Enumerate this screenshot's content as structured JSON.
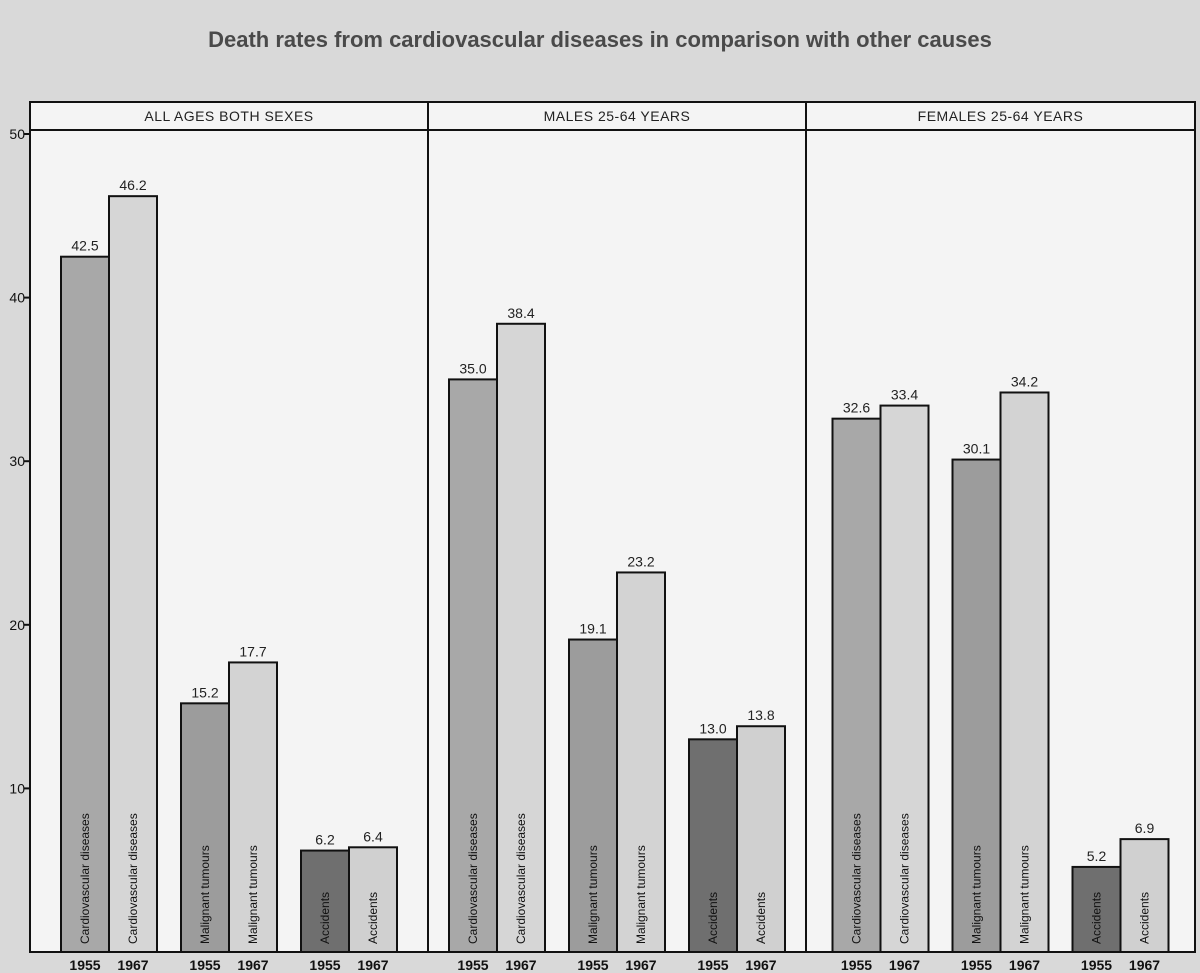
{
  "chart_data": {
    "type": "bar",
    "title": "Death rates from cardiovascular diseases in comparison with other causes",
    "ylim": [
      0,
      50
    ],
    "yticks": [
      10,
      20,
      30,
      40,
      50
    ],
    "grid": false,
    "panels": [
      {
        "label": "ALL AGES BOTH SEXES",
        "groups": [
          {
            "category": "Cardiovascular diseases",
            "bars": [
              {
                "year": "1955",
                "value": 42.5,
                "value_label": "42.5"
              },
              {
                "year": "1967",
                "value": 46.2,
                "value_label": "46.2"
              }
            ]
          },
          {
            "category": "Malignant tumours",
            "bars": [
              {
                "year": "1955",
                "value": 15.2,
                "value_label": "15.2"
              },
              {
                "year": "1967",
                "value": 17.7,
                "value_label": "17.7"
              }
            ]
          },
          {
            "category": "Accidents",
            "bars": [
              {
                "year": "1955",
                "value": 6.2,
                "value_label": "6.2"
              },
              {
                "year": "1967",
                "value": 6.4,
                "value_label": "6.4"
              }
            ]
          }
        ]
      },
      {
        "label": "MALES 25-64 YEARS",
        "groups": [
          {
            "category": "Cardiovascular diseases",
            "bars": [
              {
                "year": "1955",
                "value": 35.0,
                "value_label": "35.0"
              },
              {
                "year": "1967",
                "value": 38.4,
                "value_label": "38.4"
              }
            ]
          },
          {
            "category": "Malignant tumours",
            "bars": [
              {
                "year": "1955",
                "value": 19.1,
                "value_label": "19.1"
              },
              {
                "year": "1967",
                "value": 23.2,
                "value_label": "23.2"
              }
            ]
          },
          {
            "category": "Accidents",
            "bars": [
              {
                "year": "1955",
                "value": 13.0,
                "value_label": "13.0"
              },
              {
                "year": "1967",
                "value": 13.8,
                "value_label": "13.8"
              }
            ]
          }
        ]
      },
      {
        "label": "FEMALES 25-64 YEARS",
        "groups": [
          {
            "category": "Cardiovascular diseases",
            "bars": [
              {
                "year": "1955",
                "value": 32.6,
                "value_label": "32.6"
              },
              {
                "year": "1967",
                "value": 33.4,
                "value_label": "33.4"
              }
            ]
          },
          {
            "category": "Malignant tumours",
            "bars": [
              {
                "year": "1955",
                "value": 30.1,
                "value_label": "30.1"
              },
              {
                "year": "1967",
                "value": 34.2,
                "value_label": "34.2"
              }
            ]
          },
          {
            "category": "Accidents",
            "bars": [
              {
                "year": "1955",
                "value": 5.2,
                "value_label": "5.2"
              },
              {
                "year": "1967",
                "value": 6.9,
                "value_label": "6.9"
              }
            ]
          }
        ]
      }
    ],
    "colors": {
      "cardio_1955": "#a8a8a8",
      "cardio_1967": "#d6d6d6",
      "tumour_1955": "#9c9c9c",
      "tumour_1967": "#d3d3d3",
      "accident_1955": "#6f6f6f",
      "accident_1967": "#d0d0d0",
      "panel_bg": "#f4f4f4",
      "outline": "#111111"
    }
  }
}
